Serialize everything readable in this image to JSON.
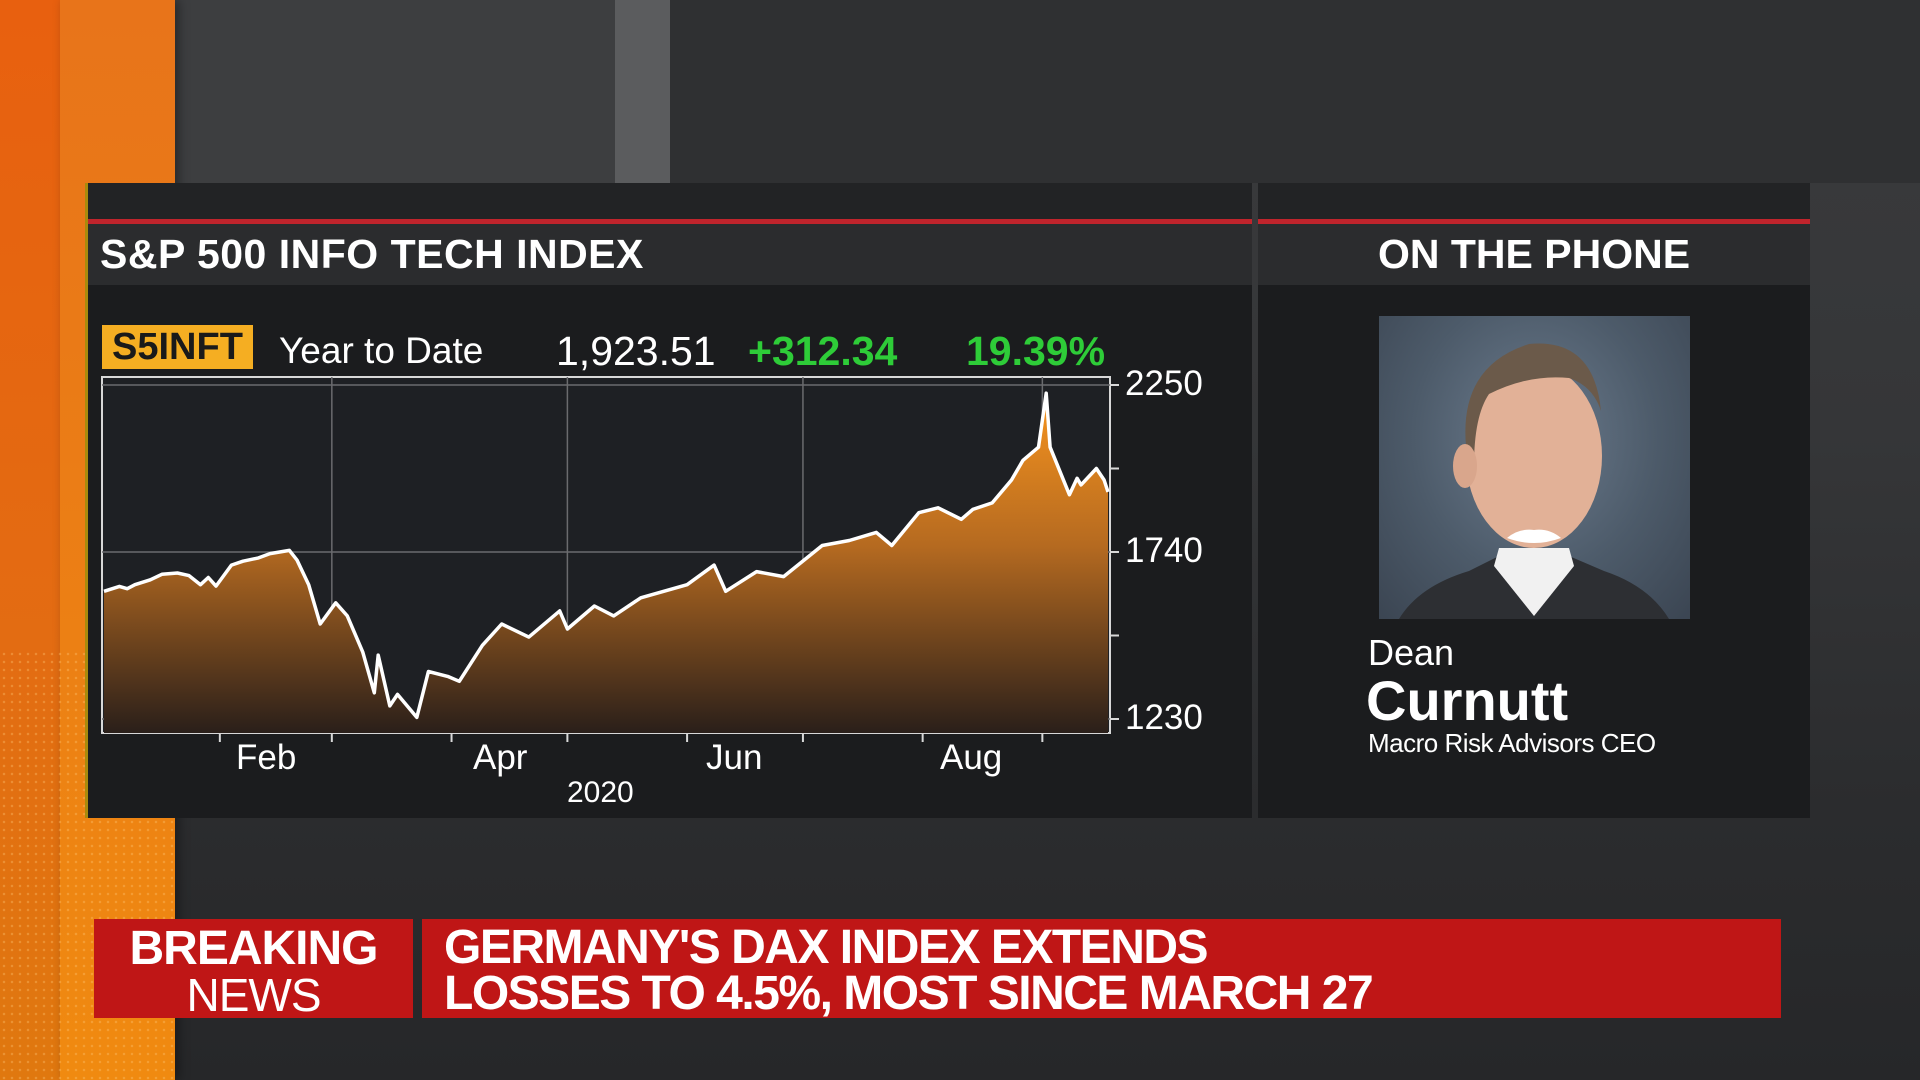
{
  "chart_panel": {
    "title": "S&P 500 INFO TECH INDEX",
    "ticker": "S5INFT",
    "period": "Year to Date",
    "last_price": "1,923.51",
    "change": "+312.34",
    "change_pct": "19.39%",
    "colors": {
      "accent": "#f5ae22",
      "positive": "#2ecc38",
      "rule": "#c0242c",
      "fill_top": "#f39020",
      "fill_bottom": "#2a1f18"
    }
  },
  "guest_panel": {
    "title": "ON THE PHONE",
    "first_name": "Dean",
    "last_name": "Curnutt",
    "role": "Macro Risk Advisors CEO"
  },
  "lower_third": {
    "breaking_line1": "BREAKING",
    "breaking_line2": "NEWS",
    "headline_line1": "GERMANY'S DAX INDEX EXTENDS",
    "headline_line2": "LOSSES TO 4.5%, MOST SINCE MARCH 27",
    "color": "#bf1616"
  },
  "chart_data": {
    "type": "area",
    "title": "S&P 500 INFO TECH INDEX (S5INFT) Year to Date",
    "xlabel": "2020",
    "ylabel": "",
    "x_tick_labels": [
      "Feb",
      "Apr",
      "Jun",
      "Aug"
    ],
    "y_tick_labels": [
      "2250",
      "1740",
      "1230"
    ],
    "ylim": [
      1230,
      2250
    ],
    "grid": true,
    "legend": "none",
    "series": [
      {
        "name": "S5INFT",
        "points": [
          {
            "date": "2020-01-02",
            "value": 1620
          },
          {
            "date": "2020-01-06",
            "value": 1635
          },
          {
            "date": "2020-01-08",
            "value": 1628
          },
          {
            "date": "2020-01-10",
            "value": 1640
          },
          {
            "date": "2020-01-14",
            "value": 1655
          },
          {
            "date": "2020-01-17",
            "value": 1672
          },
          {
            "date": "2020-01-21",
            "value": 1676
          },
          {
            "date": "2020-01-24",
            "value": 1668
          },
          {
            "date": "2020-01-27",
            "value": 1640
          },
          {
            "date": "2020-01-29",
            "value": 1662
          },
          {
            "date": "2020-01-31",
            "value": 1636
          },
          {
            "date": "2020-02-04",
            "value": 1700
          },
          {
            "date": "2020-02-07",
            "value": 1712
          },
          {
            "date": "2020-02-11",
            "value": 1722
          },
          {
            "date": "2020-02-14",
            "value": 1735
          },
          {
            "date": "2020-02-19",
            "value": 1745
          },
          {
            "date": "2020-02-21",
            "value": 1715
          },
          {
            "date": "2020-02-24",
            "value": 1640
          },
          {
            "date": "2020-02-27",
            "value": 1520
          },
          {
            "date": "2020-03-02",
            "value": 1585
          },
          {
            "date": "2020-03-05",
            "value": 1545
          },
          {
            "date": "2020-03-09",
            "value": 1435
          },
          {
            "date": "2020-03-12",
            "value": 1310
          },
          {
            "date": "2020-03-13",
            "value": 1425
          },
          {
            "date": "2020-03-16",
            "value": 1270
          },
          {
            "date": "2020-03-18",
            "value": 1305
          },
          {
            "date": "2020-03-23",
            "value": 1235
          },
          {
            "date": "2020-03-26",
            "value": 1375
          },
          {
            "date": "2020-03-31",
            "value": 1360
          },
          {
            "date": "2020-04-03",
            "value": 1345
          },
          {
            "date": "2020-04-09",
            "value": 1455
          },
          {
            "date": "2020-04-14",
            "value": 1520
          },
          {
            "date": "2020-04-21",
            "value": 1480
          },
          {
            "date": "2020-04-29",
            "value": 1560
          },
          {
            "date": "2020-05-01",
            "value": 1505
          },
          {
            "date": "2020-05-08",
            "value": 1575
          },
          {
            "date": "2020-05-13",
            "value": 1545
          },
          {
            "date": "2020-05-20",
            "value": 1600
          },
          {
            "date": "2020-06-01",
            "value": 1640
          },
          {
            "date": "2020-06-08",
            "value": 1700
          },
          {
            "date": "2020-06-11",
            "value": 1620
          },
          {
            "date": "2020-06-19",
            "value": 1680
          },
          {
            "date": "2020-06-26",
            "value": 1665
          },
          {
            "date": "2020-07-06",
            "value": 1760
          },
          {
            "date": "2020-07-13",
            "value": 1775
          },
          {
            "date": "2020-07-20",
            "value": 1800
          },
          {
            "date": "2020-07-24",
            "value": 1760
          },
          {
            "date": "2020-07-31",
            "value": 1860
          },
          {
            "date": "2020-08-05",
            "value": 1875
          },
          {
            "date": "2020-08-11",
            "value": 1840
          },
          {
            "date": "2020-08-14",
            "value": 1870
          },
          {
            "date": "2020-08-19",
            "value": 1890
          },
          {
            "date": "2020-08-24",
            "value": 1960
          },
          {
            "date": "2020-08-27",
            "value": 2020
          },
          {
            "date": "2020-08-31",
            "value": 2060
          },
          {
            "date": "2020-09-02",
            "value": 2225
          },
          {
            "date": "2020-09-03",
            "value": 2060
          },
          {
            "date": "2020-09-08",
            "value": 1915
          },
          {
            "date": "2020-09-10",
            "value": 1965
          },
          {
            "date": "2020-09-11",
            "value": 1945
          },
          {
            "date": "2020-09-15",
            "value": 1995
          },
          {
            "date": "2020-09-17",
            "value": 1960
          },
          {
            "date": "2020-09-18",
            "value": 1923.51
          }
        ]
      }
    ]
  }
}
